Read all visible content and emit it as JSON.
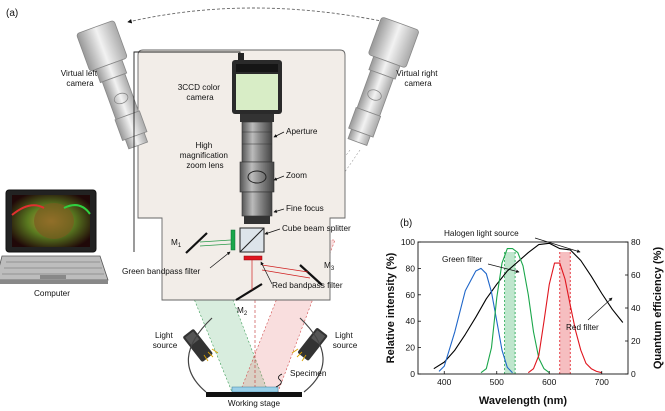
{
  "panel_a": {
    "tag": "(a)",
    "labels": {
      "virtual_left_camera": [
        "Virtual left",
        "camera"
      ],
      "virtual_right_camera": [
        "Virtual right",
        "camera"
      ],
      "ccd_camera": [
        "3CCD color",
        "camera"
      ],
      "aperture": "Aperture",
      "zoom_lens": [
        "High",
        "magnification",
        "zoom lens"
      ],
      "zoom": "Zoom",
      "fine_focus": "Fine focus",
      "cube_beam_splitter": "Cube beam splitter",
      "m1": "M",
      "m1_sub": "1",
      "m2": "M",
      "m2_sub": "2",
      "m3": "M",
      "m3_sub": "3",
      "green_bandpass": "Green bandpass filter",
      "red_bandpass": "Red bandpass filter",
      "computer": "Computer",
      "light_source_left": [
        "Light",
        "source"
      ],
      "light_source_right": [
        "Light",
        "source"
      ],
      "specimen": "Specimen",
      "working_stage": "Working stage"
    }
  },
  "panel_b": {
    "tag": "(b)",
    "chart_data": {
      "type": "line",
      "xlabel": "Wavelength (nm)",
      "ylabel_left": "Relative intensity (%)",
      "ylabel_right": "Quantum efficiency (%)",
      "xlim": [
        350,
        750
      ],
      "ylim_left": [
        0,
        100
      ],
      "ylim_right": [
        0,
        80
      ],
      "xticks": [
        400,
        500,
        600,
        700
      ],
      "yticks_left": [
        0,
        20,
        40,
        60,
        80,
        100
      ],
      "yticks_right": [
        0,
        20,
        40,
        60,
        80
      ],
      "annotations": {
        "halogen": "Halogen light source",
        "green_filter": "Green filter",
        "red_filter": "Red filter"
      },
      "series": [
        {
          "role": "halogen",
          "color": "#000000",
          "x": [
            380,
            400,
            420,
            440,
            460,
            480,
            500,
            520,
            540,
            560,
            580,
            600,
            620,
            640,
            660,
            680,
            700,
            720,
            740
          ],
          "y": [
            4,
            9,
            18,
            30,
            43,
            57,
            68,
            78,
            85,
            92,
            98,
            99,
            95,
            94,
            86,
            74,
            61,
            49,
            39
          ]
        },
        {
          "role": "blue",
          "color": "#1f66c9",
          "x": [
            390,
            400,
            420,
            440,
            460,
            470,
            480,
            490,
            500,
            510,
            520,
            530
          ],
          "y": [
            2,
            6,
            32,
            63,
            78,
            80,
            76,
            62,
            40,
            18,
            5,
            1
          ]
        },
        {
          "role": "green",
          "color": "#1aa64a",
          "x": [
            470,
            480,
            490,
            500,
            510,
            520,
            530,
            540,
            550,
            560,
            570,
            580,
            590,
            600
          ],
          "y": [
            1,
            4,
            20,
            58,
            84,
            95,
            95,
            92,
            82,
            60,
            32,
            12,
            4,
            1
          ]
        },
        {
          "role": "red",
          "color": "#e0151e",
          "x": [
            560,
            570,
            580,
            590,
            600,
            610,
            620,
            630,
            640,
            650,
            660,
            670,
            680,
            690,
            700
          ],
          "y": [
            1,
            4,
            14,
            40,
            68,
            84,
            84,
            72,
            52,
            33,
            18,
            8,
            4,
            2,
            1
          ]
        }
      ],
      "bands": [
        {
          "role": "green_filter",
          "color": "#1aa64a",
          "from": 515,
          "to": 535
        },
        {
          "role": "red_filter",
          "color": "#e0151e",
          "from": 620,
          "to": 640
        }
      ]
    }
  }
}
